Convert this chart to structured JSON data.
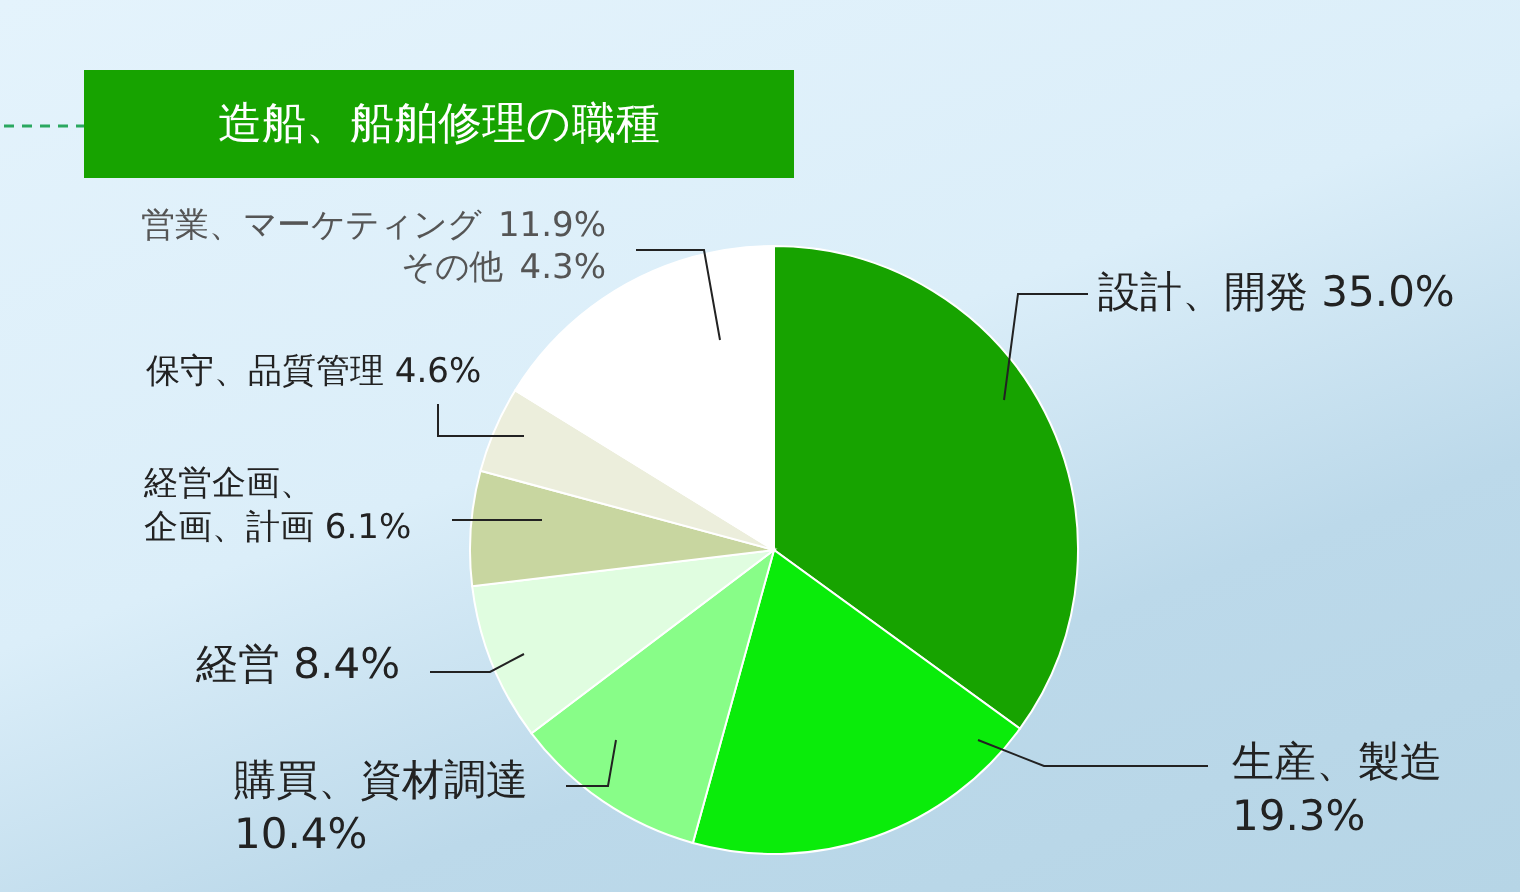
{
  "chart_data": {
    "type": "pie",
    "title": "造船、船舶修理の職種",
    "categories": [
      "設計、開発",
      "生産、製造",
      "購買、資材調達",
      "経営",
      "経営企画、企画、計画",
      "保守、品質管理",
      "営業、マーケティング",
      "その他"
    ],
    "values": [
      35.0,
      19.3,
      10.4,
      8.4,
      6.1,
      4.6,
      11.9,
      4.3
    ],
    "value_labels": [
      "35.0%",
      "19.3%",
      "10.4%",
      "8.4%",
      "6.1%",
      "4.6%",
      "11.9%",
      "4.3%"
    ],
    "colors": [
      "#17a300",
      "#0aec0a",
      "#88fd88",
      "#e0fde0",
      "#c8d6a0",
      "#eceedc",
      "#ffffff",
      "#ffffff"
    ]
  }
}
